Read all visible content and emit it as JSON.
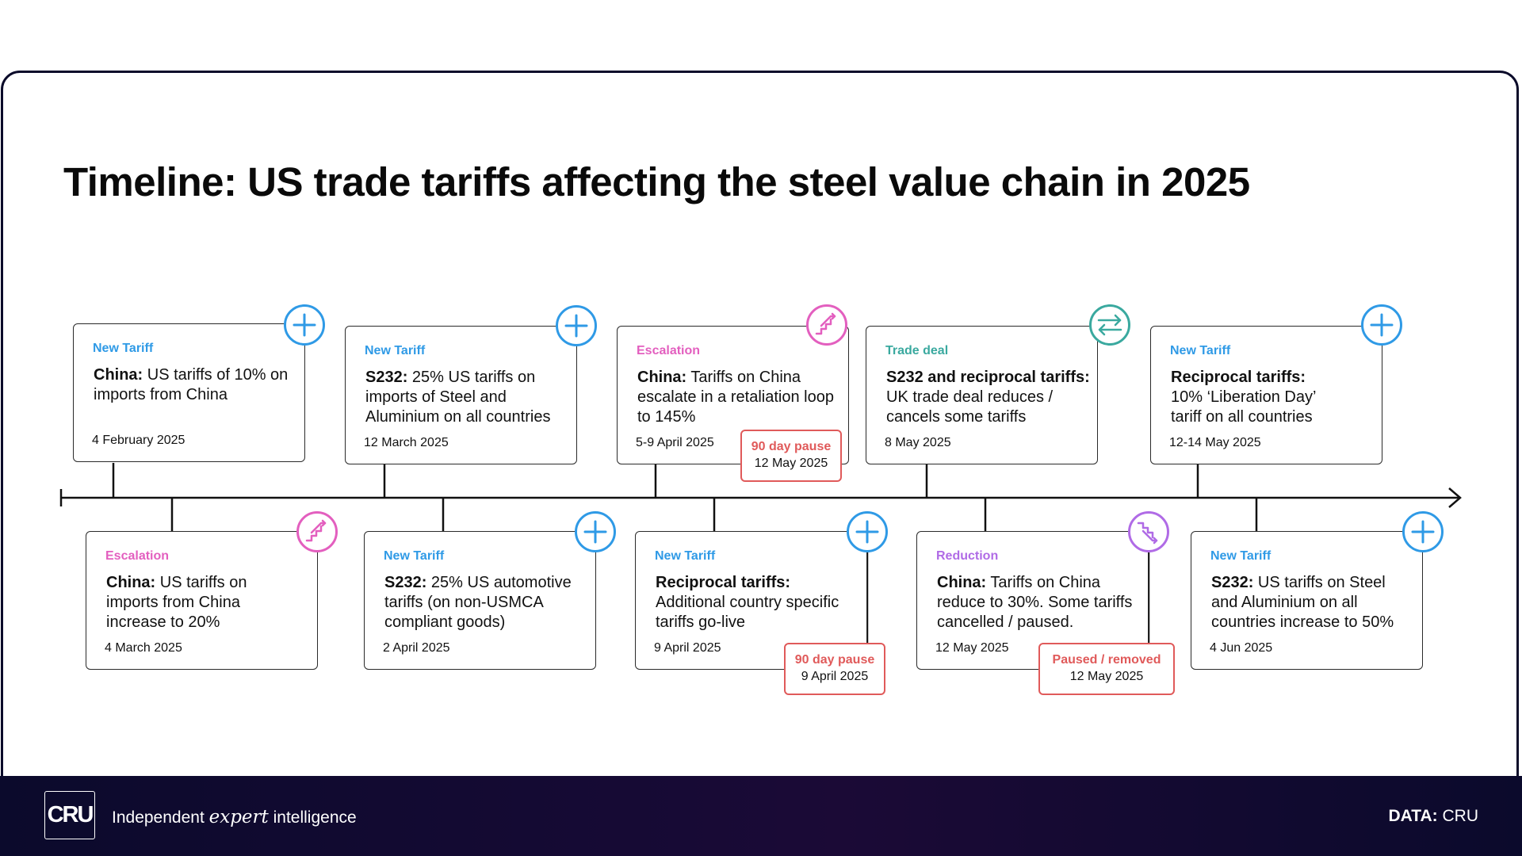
{
  "title": "Timeline: US trade tariffs affecting the steel value chain in 2025",
  "colors": {
    "new_tariff": "#2f9ae6",
    "escalation": "#e35fbf",
    "trade_deal": "#3aa99f",
    "reduction": "#b06be6",
    "pause": "#e05a5a",
    "footer_bg": "#0b0a2c"
  },
  "events_top": [
    {
      "category": "New Tariff",
      "bold": "China:",
      "text": " US tariffs of 10% on imports from China",
      "date": "4 February 2025",
      "icon": "plus-icon"
    },
    {
      "category": "New Tariff",
      "bold": "S232:",
      "text": " 25% US tariffs on imports of Steel and Aluminium on all countries",
      "date": "12 March 2025",
      "icon": "plus-icon"
    },
    {
      "category": "Escalation",
      "bold": "China:",
      "text": " Tariffs on China escalate in a retaliation loop to 145%",
      "date": "5-9 April 2025",
      "icon": "stairs-up-icon"
    },
    {
      "category": "Trade deal",
      "bold": "S232 and reciprocal tariffs:",
      "text": " UK trade deal reduces / cancels some tariffs",
      "date": "8 May 2025",
      "icon": "exchange-arrows-icon"
    },
    {
      "category": "New Tariff",
      "bold": "Reciprocal tariffs:",
      "text": " 10% ‘Liberation Day’ tariff on all countries",
      "date": "12-14 May 2025",
      "icon": "plus-icon"
    }
  ],
  "events_bottom": [
    {
      "category": "Escalation",
      "bold": "China:",
      "text": " US tariffs on imports from China increase to 20%",
      "date": "4 March 2025",
      "icon": "stairs-up-icon"
    },
    {
      "category": "New Tariff",
      "bold": "S232:",
      "text": " 25% US automotive tariffs (on non-USMCA compliant goods)",
      "date": "2 April 2025",
      "icon": "plus-icon"
    },
    {
      "category": "New Tariff",
      "bold": "Reciprocal tariffs:",
      "text": " Additional country specific tariffs go-live",
      "date": "9 April 2025",
      "icon": "plus-icon"
    },
    {
      "category": "Reduction",
      "bold": "China:",
      "text": " Tariffs on China reduce to 30%. Some tariffs cancelled / paused.",
      "date": "12 May 2025",
      "icon": "stairs-down-icon"
    },
    {
      "category": "New Tariff",
      "bold": "S232:",
      "text": " US tariffs on Steel and Aluminium on all countries increase to 50%",
      "date": "4 Jun 2025",
      "icon": "plus-icon"
    }
  ],
  "pauses": [
    {
      "label": "90 day pause",
      "date": "12 May 2025"
    },
    {
      "label": "90 day pause",
      "date": "9 April 2025"
    },
    {
      "label": "Paused / removed",
      "date": "12 May 2025"
    }
  ],
  "footer": {
    "logo": "CRU",
    "tagline_pre": "Independent ",
    "tagline_em": "expert",
    "tagline_post": " intelligence",
    "source_label": "DATA:",
    "source_value": " CRU"
  }
}
